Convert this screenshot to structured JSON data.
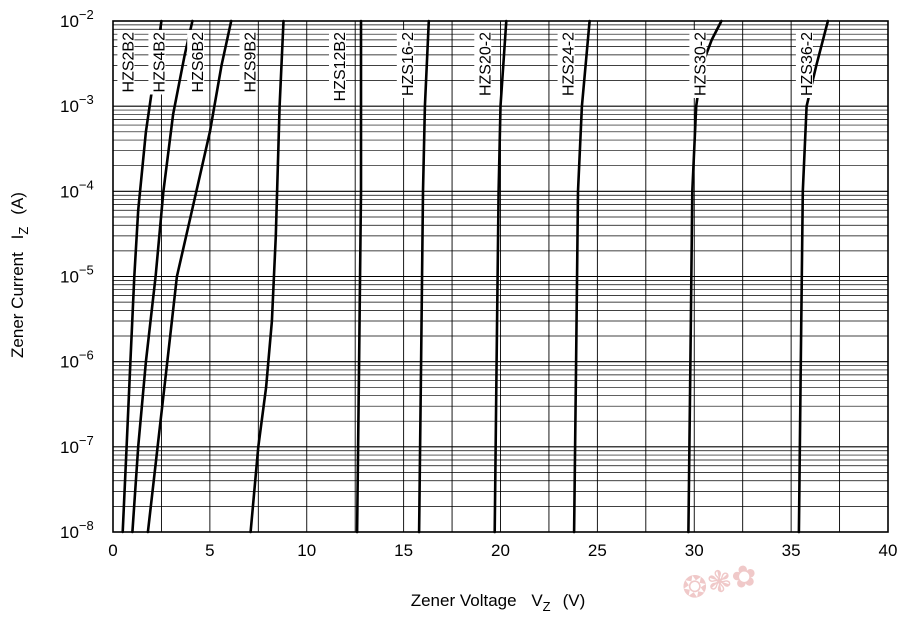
{
  "chart_data": {
    "type": "line",
    "xlabel": "Zener Voltage",
    "xlabel_symbol": "V",
    "xlabel_sub": "Z",
    "xlabel_unit": "(V)",
    "ylabel": "Zener Current",
    "ylabel_symbol": "I",
    "ylabel_sub": "Z",
    "ylabel_unit": "(A)",
    "xlim": [
      0,
      40
    ],
    "ylim": [
      1e-08,
      0.01
    ],
    "yscale": "log",
    "grid": true,
    "x_ticks": [
      0,
      5,
      10,
      15,
      20,
      25,
      30,
      35,
      40
    ],
    "x_tick_labels": [
      "0",
      "5",
      "10",
      "15",
      "20",
      "25",
      "30",
      "35",
      "40"
    ],
    "y_ticks": [
      -8,
      -7,
      -6,
      -5,
      -4,
      -3,
      -2
    ],
    "y_tick_labels": [
      {
        "base": "10",
        "exp": "−8"
      },
      {
        "base": "10",
        "exp": "−7"
      },
      {
        "base": "10",
        "exp": "−6"
      },
      {
        "base": "10",
        "exp": "−5"
      },
      {
        "base": "10",
        "exp": "−4"
      },
      {
        "base": "10",
        "exp": "−3"
      },
      {
        "base": "10",
        "exp": "−2"
      }
    ],
    "series": [
      {
        "name": "HZS2B2",
        "points": [
          [
            0.5,
            1e-08
          ],
          [
            0.7,
            1e-07
          ],
          [
            0.9,
            1e-06
          ],
          [
            1.1,
            1e-05
          ],
          [
            1.3,
            6e-05
          ],
          [
            1.7,
            0.0005
          ],
          [
            2.0,
            0.0015
          ],
          [
            2.5,
            0.01
          ]
        ]
      },
      {
        "name": "HZS4B2",
        "points": [
          [
            1.0,
            1e-08
          ],
          [
            1.3,
            1e-07
          ],
          [
            1.7,
            1e-06
          ],
          [
            2.2,
            1e-05
          ],
          [
            2.6,
            0.0001
          ],
          [
            3.1,
            0.0008
          ],
          [
            3.7,
            0.004
          ],
          [
            4.1,
            0.01
          ]
        ]
      },
      {
        "name": "HZS6B2",
        "points": [
          [
            1.8,
            1e-08
          ],
          [
            2.3,
            1e-07
          ],
          [
            2.8,
            1e-06
          ],
          [
            3.3,
            1e-05
          ],
          [
            4.0,
            5e-05
          ],
          [
            5.0,
            0.0005
          ],
          [
            5.6,
            0.003
          ],
          [
            6.1,
            0.01
          ]
        ]
      },
      {
        "name": "HZS9B2",
        "points": [
          [
            7.1,
            1e-08
          ],
          [
            7.5,
            1e-07
          ],
          [
            7.9,
            5e-07
          ],
          [
            8.2,
            3e-06
          ],
          [
            8.4,
            3e-05
          ],
          [
            8.6,
            0.001
          ],
          [
            8.8,
            0.01
          ]
        ]
      },
      {
        "name": "HZS12B2",
        "points": [
          [
            12.6,
            1e-08
          ],
          [
            12.7,
            1e-06
          ],
          [
            12.8,
            0.0001
          ],
          [
            12.8,
            0.01
          ]
        ]
      },
      {
        "name": "HZS16-2",
        "points": [
          [
            15.8,
            1e-08
          ],
          [
            15.9,
            1e-06
          ],
          [
            16.0,
            0.0001
          ],
          [
            16.1,
            0.001
          ],
          [
            16.3,
            0.01
          ]
        ]
      },
      {
        "name": "HZS20-2",
        "points": [
          [
            19.7,
            1e-08
          ],
          [
            19.8,
            1e-06
          ],
          [
            19.9,
            0.0001
          ],
          [
            20.0,
            0.001
          ],
          [
            20.3,
            0.01
          ]
        ]
      },
      {
        "name": "HZS24-2",
        "points": [
          [
            23.8,
            1e-08
          ],
          [
            23.9,
            1e-06
          ],
          [
            24.0,
            0.0001
          ],
          [
            24.2,
            0.001
          ],
          [
            24.6,
            0.01
          ]
        ]
      },
      {
        "name": "HZS30-2",
        "points": [
          [
            29.7,
            1e-08
          ],
          [
            29.8,
            1e-06
          ],
          [
            29.9,
            0.0001
          ],
          [
            30.1,
            0.001
          ],
          [
            30.4,
            0.003
          ],
          [
            30.9,
            0.006
          ],
          [
            31.4,
            0.01
          ]
        ]
      },
      {
        "name": "HZS36-2",
        "points": [
          [
            35.4,
            1e-08
          ],
          [
            35.5,
            1e-06
          ],
          [
            35.6,
            0.0001
          ],
          [
            35.8,
            0.001
          ],
          [
            36.3,
            0.003
          ],
          [
            36.9,
            0.01
          ]
        ]
      }
    ],
    "series_color": "#000000",
    "grid_color": "#000000",
    "background": "#ffffff"
  }
}
